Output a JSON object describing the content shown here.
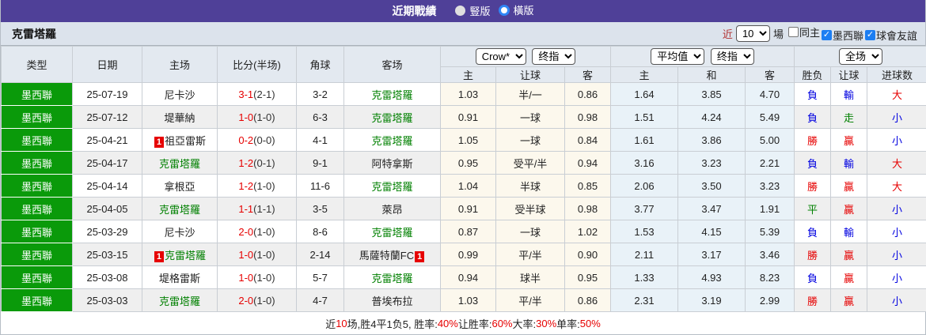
{
  "titlebar": {
    "title": "近期戰績",
    "radios": [
      {
        "label": "豎版",
        "checked": false
      },
      {
        "label": "橫版",
        "checked": true
      }
    ]
  },
  "toolbar": {
    "team": "克雷塔羅",
    "near_label": "近",
    "matches_value": "10",
    "unit_label": "場",
    "checkboxes": [
      {
        "label": "同主",
        "checked": false
      },
      {
        "label": "墨西聯",
        "checked": true
      },
      {
        "label": "球會友誼",
        "checked": true
      }
    ]
  },
  "table": {
    "main_headers": [
      "类型",
      "日期",
      "主场",
      "比分(半场)",
      "角球",
      "客场"
    ],
    "sub_headers": [
      "主",
      "让球",
      "客",
      "主",
      "和",
      "客",
      "胜负",
      "让球",
      "进球数"
    ],
    "selects": {
      "odds_source": "Crow*",
      "odds_source_time": "终指",
      "avg": "平均值",
      "avg_time": "终指",
      "scope": "全场"
    },
    "rows": [
      {
        "league": "墨西聯",
        "date": "25-07-19",
        "home": {
          "name": "尼卡沙",
          "focus": false,
          "badge": null
        },
        "score_ft": "3-1",
        "score_ht": "(2-1)",
        "corner": "3-2",
        "away": {
          "name": "克雷塔羅",
          "focus": true,
          "badge": null
        },
        "asian": [
          "1.03",
          "半/一",
          "0.86"
        ],
        "euro": [
          "1.64",
          "3.85",
          "4.70"
        ],
        "results": [
          {
            "t": "負",
            "c": "blue"
          },
          {
            "t": "輸",
            "c": "blue"
          },
          {
            "t": "大",
            "c": "red"
          }
        ]
      },
      {
        "league": "墨西聯",
        "date": "25-07-12",
        "home": {
          "name": "堤華納",
          "focus": false,
          "badge": null
        },
        "score_ft": "1-0",
        "score_ht": "(1-0)",
        "corner": "6-3",
        "away": {
          "name": "克雷塔羅",
          "focus": true,
          "badge": null
        },
        "asian": [
          "0.91",
          "一球",
          "0.98"
        ],
        "euro": [
          "1.51",
          "4.24",
          "5.49"
        ],
        "results": [
          {
            "t": "負",
            "c": "blue"
          },
          {
            "t": "走",
            "c": "green"
          },
          {
            "t": "小",
            "c": "blue"
          }
        ]
      },
      {
        "league": "墨西聯",
        "date": "25-04-21",
        "home": {
          "name": "祖亞雷斯",
          "focus": false,
          "badge": "before"
        },
        "score_ft": "0-2",
        "score_ht": "(0-0)",
        "corner": "4-1",
        "away": {
          "name": "克雷塔羅",
          "focus": true,
          "badge": null
        },
        "asian": [
          "1.05",
          "一球",
          "0.84"
        ],
        "euro": [
          "1.61",
          "3.86",
          "5.00"
        ],
        "results": [
          {
            "t": "勝",
            "c": "red"
          },
          {
            "t": "贏",
            "c": "red"
          },
          {
            "t": "小",
            "c": "blue"
          }
        ]
      },
      {
        "league": "墨西聯",
        "date": "25-04-17",
        "home": {
          "name": "克雷塔羅",
          "focus": true,
          "badge": null
        },
        "score_ft": "1-2",
        "score_ht": "(0-1)",
        "corner": "9-1",
        "away": {
          "name": "阿特拿斯",
          "focus": false,
          "badge": null
        },
        "asian": [
          "0.95",
          "受平/半",
          "0.94"
        ],
        "euro": [
          "3.16",
          "3.23",
          "2.21"
        ],
        "results": [
          {
            "t": "負",
            "c": "blue"
          },
          {
            "t": "輸",
            "c": "blue"
          },
          {
            "t": "大",
            "c": "red"
          }
        ]
      },
      {
        "league": "墨西聯",
        "date": "25-04-14",
        "home": {
          "name": "拿根亞",
          "focus": false,
          "badge": null
        },
        "score_ft": "1-2",
        "score_ht": "(1-0)",
        "corner": "11-6",
        "away": {
          "name": "克雷塔羅",
          "focus": true,
          "badge": null
        },
        "asian": [
          "1.04",
          "半球",
          "0.85"
        ],
        "euro": [
          "2.06",
          "3.50",
          "3.23"
        ],
        "results": [
          {
            "t": "勝",
            "c": "red"
          },
          {
            "t": "贏",
            "c": "red"
          },
          {
            "t": "大",
            "c": "red"
          }
        ]
      },
      {
        "league": "墨西聯",
        "date": "25-04-05",
        "home": {
          "name": "克雷塔羅",
          "focus": true,
          "badge": null
        },
        "score_ft": "1-1",
        "score_ht": "(1-1)",
        "corner": "3-5",
        "away": {
          "name": "萊昂",
          "focus": false,
          "badge": null
        },
        "asian": [
          "0.91",
          "受半球",
          "0.98"
        ],
        "euro": [
          "3.77",
          "3.47",
          "1.91"
        ],
        "results": [
          {
            "t": "平",
            "c": "green"
          },
          {
            "t": "贏",
            "c": "red"
          },
          {
            "t": "小",
            "c": "blue"
          }
        ]
      },
      {
        "league": "墨西聯",
        "date": "25-03-29",
        "home": {
          "name": "尼卡沙",
          "focus": false,
          "badge": null
        },
        "score_ft": "2-0",
        "score_ht": "(1-0)",
        "corner": "8-6",
        "away": {
          "name": "克雷塔羅",
          "focus": true,
          "badge": null
        },
        "asian": [
          "0.87",
          "一球",
          "1.02"
        ],
        "euro": [
          "1.53",
          "4.15",
          "5.39"
        ],
        "results": [
          {
            "t": "負",
            "c": "blue"
          },
          {
            "t": "輸",
            "c": "blue"
          },
          {
            "t": "小",
            "c": "blue"
          }
        ]
      },
      {
        "league": "墨西聯",
        "date": "25-03-15",
        "home": {
          "name": "克雷塔羅",
          "focus": true,
          "badge": "before"
        },
        "score_ft": "1-0",
        "score_ht": "(1-0)",
        "corner": "2-14",
        "away": {
          "name": "馬薩特蘭FC",
          "focus": false,
          "badge": "after"
        },
        "asian": [
          "0.99",
          "平/半",
          "0.90"
        ],
        "euro": [
          "2.11",
          "3.17",
          "3.46"
        ],
        "results": [
          {
            "t": "勝",
            "c": "red"
          },
          {
            "t": "贏",
            "c": "red"
          },
          {
            "t": "小",
            "c": "blue"
          }
        ]
      },
      {
        "league": "墨西聯",
        "date": "25-03-08",
        "home": {
          "name": "堤格雷斯",
          "focus": false,
          "badge": null
        },
        "score_ft": "1-0",
        "score_ht": "(1-0)",
        "corner": "5-7",
        "away": {
          "name": "克雷塔羅",
          "focus": true,
          "badge": null
        },
        "asian": [
          "0.94",
          "球半",
          "0.95"
        ],
        "euro": [
          "1.33",
          "4.93",
          "8.23"
        ],
        "results": [
          {
            "t": "負",
            "c": "blue"
          },
          {
            "t": "贏",
            "c": "red"
          },
          {
            "t": "小",
            "c": "blue"
          }
        ]
      },
      {
        "league": "墨西聯",
        "date": "25-03-03",
        "home": {
          "name": "克雷塔羅",
          "focus": true,
          "badge": null
        },
        "score_ft": "2-0",
        "score_ht": "(1-0)",
        "corner": "4-7",
        "away": {
          "name": "普埃布拉",
          "focus": false,
          "badge": null
        },
        "asian": [
          "1.03",
          "平/半",
          "0.86"
        ],
        "euro": [
          "2.31",
          "3.19",
          "2.99"
        ],
        "results": [
          {
            "t": "勝",
            "c": "red"
          },
          {
            "t": "贏",
            "c": "red"
          },
          {
            "t": "小",
            "c": "blue"
          }
        ]
      }
    ]
  },
  "footer": {
    "segments": [
      {
        "t": "近",
        "red": false
      },
      {
        "t": "10",
        "red": true
      },
      {
        "t": "场,胜4平1负5, 胜率:",
        "red": false
      },
      {
        "t": "40%",
        "red": true
      },
      {
        "t": " 让胜率:",
        "red": false
      },
      {
        "t": "60%",
        "red": true
      },
      {
        "t": " 大率:",
        "red": false
      },
      {
        "t": "30%",
        "red": true
      },
      {
        "t": " 单率:",
        "red": false
      },
      {
        "t": "50%",
        "red": true
      }
    ]
  },
  "colors": {
    "accent_purple": "#4f4098",
    "league_green": "#0a9a0a",
    "focus_team_green": "#008000",
    "win_red": "#e60000",
    "lose_blue": "#0000e0",
    "asian_odds_bg": "#fcf8ed",
    "euro_odds_bg": "#e9f2f8"
  }
}
